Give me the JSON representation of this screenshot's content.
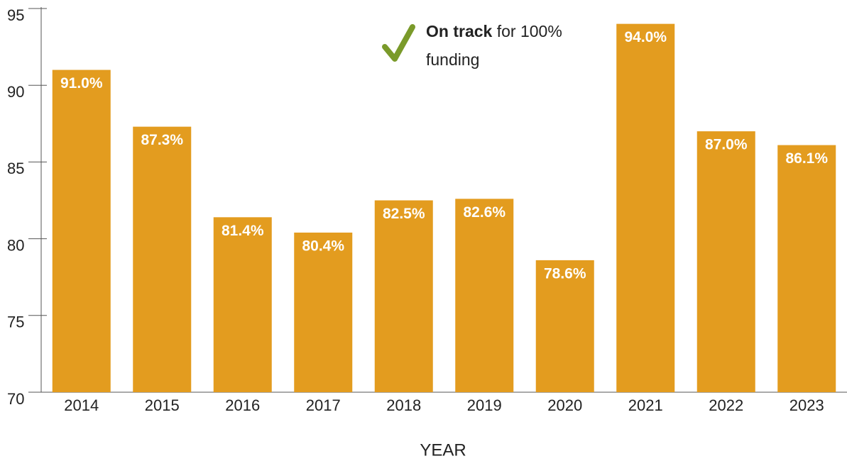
{
  "chart_data": {
    "type": "bar",
    "categories": [
      "2014",
      "2015",
      "2016",
      "2017",
      "2018",
      "2019",
      "2020",
      "2021",
      "2022",
      "2023"
    ],
    "values": [
      91.0,
      87.3,
      81.4,
      80.4,
      82.5,
      82.6,
      78.6,
      94.0,
      87.0,
      86.1
    ],
    "value_labels": [
      "91.0%",
      "87.3%",
      "81.4%",
      "80.4%",
      "82.5%",
      "82.6%",
      "78.6%",
      "94.0%",
      "87.0%",
      "86.1%"
    ],
    "color": "#e39c1f",
    "ylim": [
      70,
      95
    ],
    "yticks": [
      70,
      75,
      80,
      85,
      90,
      95
    ],
    "xlabel": "YEAR",
    "annotation": {
      "emphasis": "On track",
      "text": "for 100% funding"
    }
  }
}
